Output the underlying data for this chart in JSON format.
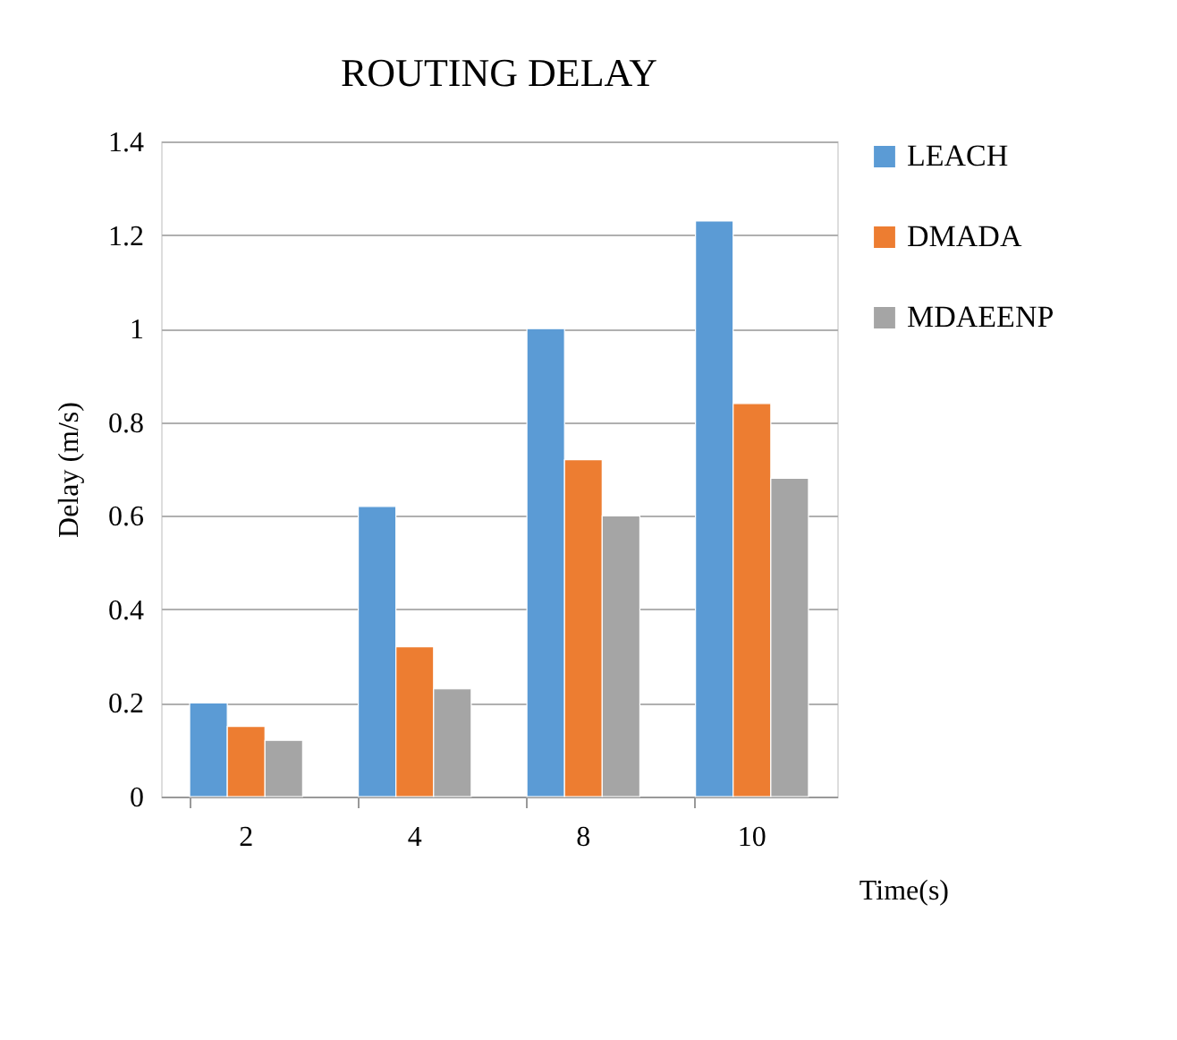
{
  "chart_data": {
    "type": "bar",
    "title": "ROUTING DELAY",
    "xlabel": "Time(s)",
    "ylabel": "Delay (m/s)",
    "categories": [
      "2",
      "4",
      "8",
      "10"
    ],
    "series": [
      {
        "name": "LEACH",
        "color": "#5b9bd5",
        "values": [
          0.2,
          0.62,
          1.0,
          1.23
        ]
      },
      {
        "name": "DMADA",
        "color": "#ed7d31",
        "values": [
          0.15,
          0.32,
          0.72,
          0.84
        ]
      },
      {
        "name": "MDAEENP",
        "color": "#a5a5a5",
        "values": [
          0.12,
          0.23,
          0.6,
          0.68
        ]
      }
    ],
    "ylim": [
      0,
      1.4
    ],
    "yticks": [
      0,
      0.2,
      0.4,
      0.6,
      0.8,
      1,
      1.2,
      1.4
    ],
    "grid": "y",
    "legend": "right"
  }
}
